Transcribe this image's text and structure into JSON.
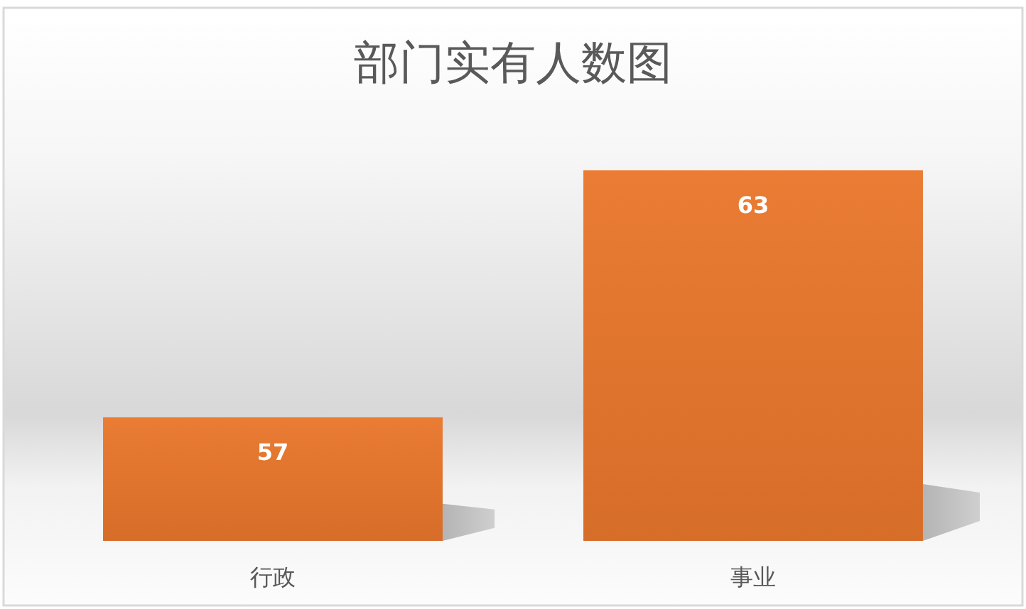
{
  "chart_data": {
    "type": "bar",
    "title": "部门实有人数图",
    "categories": [
      "行政",
      "事业"
    ],
    "values": [
      57,
      63
    ],
    "color": "#e9772c",
    "ylim": [
      54,
      63
    ],
    "data_labels": true
  }
}
